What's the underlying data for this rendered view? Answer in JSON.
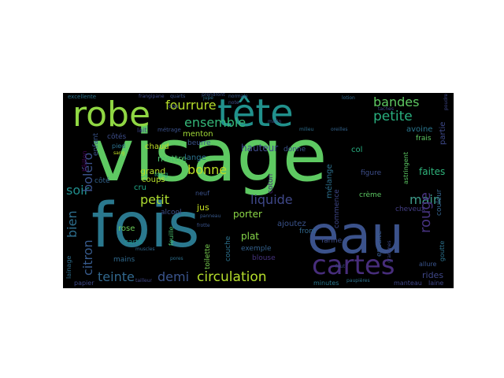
{
  "wordcloud": {
    "background": "#000000",
    "words": [
      {
        "text": "visage",
        "color": "#5ec962"
      },
      {
        "text": "fois",
        "color": "#2a788e"
      },
      {
        "text": "eau",
        "color": "#3b528b"
      },
      {
        "text": "tête",
        "color": "#21918c"
      },
      {
        "text": "robe",
        "color": "#90d743"
      },
      {
        "text": "cartes",
        "color": "#472d7b"
      },
      {
        "text": "fourrure",
        "color": "#b5de2b"
      },
      {
        "text": "bandes",
        "color": "#5ec962"
      },
      {
        "text": "petite",
        "color": "#29af7f"
      },
      {
        "text": "ensemble",
        "color": "#35b779"
      },
      {
        "text": "main",
        "color": "#3e9b8a"
      },
      {
        "text": "rouge",
        "color": "#46327e"
      },
      {
        "text": "liquide",
        "color": "#3f4889"
      },
      {
        "text": "circulation",
        "color": "#b5de2b"
      },
      {
        "text": "teinte",
        "color": "#31688e"
      },
      {
        "text": "demi",
        "color": "#3a548c"
      },
      {
        "text": "bonne",
        "color": "#bddf26"
      },
      {
        "text": "petit",
        "color": "#addc30"
      },
      {
        "text": "soir",
        "color": "#218e8d"
      },
      {
        "text": "boléro",
        "color": "#3b528b"
      },
      {
        "text": "bien",
        "color": "#2e6f8e"
      },
      {
        "text": "citron",
        "color": "#375b8d"
      },
      {
        "text": "jus",
        "color": "#c5e021"
      },
      {
        "text": "porter",
        "color": "#8bd646"
      },
      {
        "text": "hauteur",
        "color": "#3f4a8a"
      },
      {
        "text": "faites",
        "color": "#2fb47c"
      },
      {
        "text": "grand",
        "color": "#b5de2b"
      },
      {
        "text": "mettre",
        "color": "#4ac16d"
      },
      {
        "text": "chaud",
        "color": "#c0df25"
      },
      {
        "text": "menton",
        "color": "#a2da37"
      },
      {
        "text": "lange",
        "color": "#2c738e"
      },
      {
        "text": "beurre",
        "color": "#3a538b"
      },
      {
        "text": "col",
        "color": "#28ae80"
      },
      {
        "text": "mélange",
        "color": "#2d708e"
      },
      {
        "text": "donne",
        "color": "#3b528b"
      },
      {
        "text": "coton",
        "color": "#482677"
      },
      {
        "text": "crème",
        "color": "#5cc863"
      },
      {
        "text": "figure",
        "color": "#3d4e8a"
      },
      {
        "text": "avoine",
        "color": "#2a768e"
      },
      {
        "text": "frais",
        "color": "#5ec962"
      },
      {
        "text": "partie",
        "color": "#3e4989"
      },
      {
        "text": "cheveux",
        "color": "#433e85"
      },
      {
        "text": "couleur",
        "color": "#33628d"
      },
      {
        "text": "ensuite",
        "color": "#38598c"
      },
      {
        "text": "farine",
        "color": "#3d4d8a"
      },
      {
        "text": "rides",
        "color": "#3f4788"
      },
      {
        "text": "ajoutez",
        "color": "#3a538b"
      },
      {
        "text": "plat",
        "color": "#86d549"
      },
      {
        "text": "couche",
        "color": "#2c728e"
      },
      {
        "text": "exemple",
        "color": "#34618d"
      },
      {
        "text": "blouse",
        "color": "#46337f"
      },
      {
        "text": "toilette",
        "color": "#7ad151"
      },
      {
        "text": "alcool",
        "color": "#3c4f8a"
      },
      {
        "text": "rose",
        "color": "#6ece58"
      },
      {
        "text": "carte",
        "color": "#20938c"
      },
      {
        "text": "mains",
        "color": "#306a8e"
      },
      {
        "text": "côté",
        "color": "#33638d"
      },
      {
        "text": "côtés",
        "color": "#3d4d8a"
      },
      {
        "text": "enfant",
        "color": "#3a548c"
      },
      {
        "text": "pied",
        "color": "#2d708e"
      },
      {
        "text": "lait",
        "color": "#3f4889"
      },
      {
        "text": "bâillon",
        "color": "#440154"
      },
      {
        "text": "coups",
        "color": "#b5de2b"
      },
      {
        "text": "long",
        "color": "#2ab07f"
      },
      {
        "text": "cru",
        "color": "#21a685"
      },
      {
        "text": "feuille",
        "color": "#4ac16d"
      },
      {
        "text": "neuf",
        "color": "#3b528b"
      },
      {
        "text": "front",
        "color": "#31688e"
      },
      {
        "text": "commence",
        "color": "#3f4788"
      },
      {
        "text": "astringent",
        "color": "#5cc863"
      },
      {
        "text": "allure",
        "color": "#3a548c"
      },
      {
        "text": "goutte",
        "color": "#2c728e"
      },
      {
        "text": "lainage",
        "color": "#2e6f8e"
      },
      {
        "text": "papier",
        "color": "#3e4989"
      },
      {
        "text": "minutes",
        "color": "#2a788e"
      },
      {
        "text": "manteau",
        "color": "#404688"
      },
      {
        "text": "laine",
        "color": "#3f4788"
      },
      {
        "text": "excellente",
        "color": "#2c728e"
      },
      {
        "text": "frangipane",
        "color": "#3f4a8a"
      },
      {
        "text": "prendront",
        "color": "#3b528b"
      },
      {
        "text": "normale",
        "color": "#38598c"
      },
      {
        "text": "lotion",
        "color": "#31688e"
      },
      {
        "text": "taches",
        "color": "#3f4788"
      },
      {
        "text": "jupe",
        "color": "#2d708e"
      },
      {
        "text": "note",
        "color": "#3c4f8a"
      },
      {
        "text": "matin",
        "color": "#3a548c"
      },
      {
        "text": "milieu",
        "color": "#2e6f8e"
      },
      {
        "text": "oreilles",
        "color": "#33638d"
      },
      {
        "text": "cou",
        "color": "#3d4d8a"
      },
      {
        "text": "métrage",
        "color": "#3b528b"
      },
      {
        "text": "poudre",
        "color": "#3f4889"
      },
      {
        "text": "sang",
        "color": "#c2df23"
      },
      {
        "text": "frotte",
        "color": "#3a548c"
      },
      {
        "text": "pores",
        "color": "#2d708e"
      },
      {
        "text": "muscles",
        "color": "#31688e"
      },
      {
        "text": "panneau",
        "color": "#38598c"
      },
      {
        "text": "faut",
        "color": "#3d4d8a"
      },
      {
        "text": "grammes",
        "color": "#3e4989"
      },
      {
        "text": "tailleur",
        "color": "#3f4788"
      },
      {
        "text": "paupières",
        "color": "#2c728e"
      },
      {
        "text": "quarts",
        "color": "#3a548c"
      }
    ]
  }
}
